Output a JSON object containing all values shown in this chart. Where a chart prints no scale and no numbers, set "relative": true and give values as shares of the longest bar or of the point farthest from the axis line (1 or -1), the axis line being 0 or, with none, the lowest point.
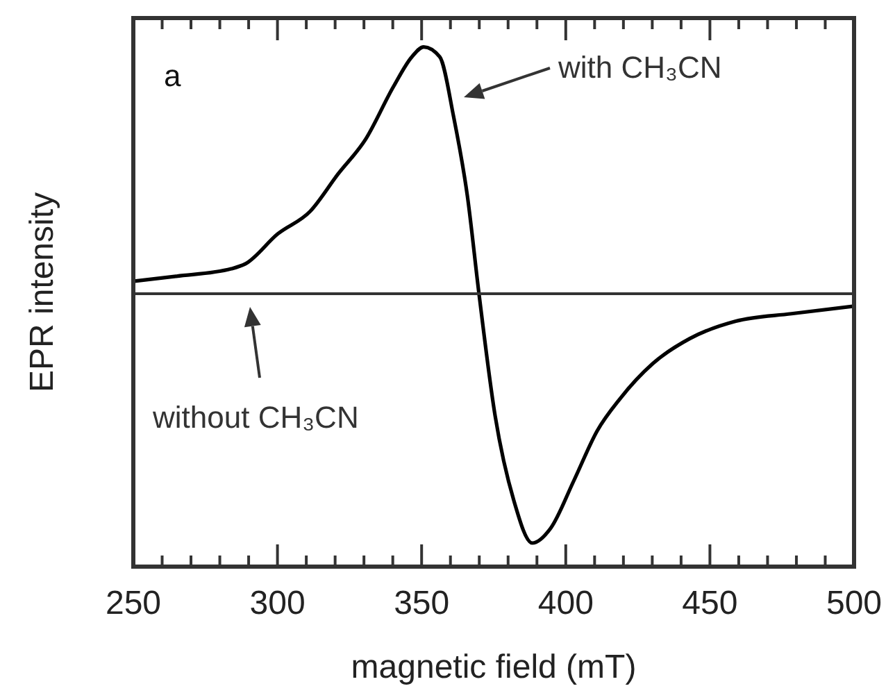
{
  "chart_data": {
    "type": "line",
    "relative": true,
    "xlabel": "magnetic field (mT)",
    "ylabel": "EPR intensity",
    "xlim": [
      250,
      500
    ],
    "xticks": [
      250,
      {
        "value": 260,
        "label": null
      },
      {
        "value": 270,
        "label": null
      },
      {
        "value": 280,
        "label": null
      },
      {
        "value": 290,
        "label": null
      },
      300,
      {
        "value": 310,
        "label": null
      },
      {
        "value": 320,
        "label": null
      },
      {
        "value": 330,
        "label": null
      },
      {
        "value": 340,
        "label": null
      },
      350,
      {
        "value": 360,
        "label": null
      },
      {
        "value": 370,
        "label": null
      },
      {
        "value": 380,
        "label": null
      },
      {
        "value": 390,
        "label": null
      },
      400,
      {
        "value": 410,
        "label": null
      },
      {
        "value": 420,
        "label": null
      },
      {
        "value": 430,
        "label": null
      },
      {
        "value": 440,
        "label": null
      },
      450,
      {
        "value": 460,
        "label": null
      },
      {
        "value": 470,
        "label": null
      },
      {
        "value": 480,
        "label": null
      },
      {
        "value": 490,
        "label": null
      },
      500
    ],
    "tick_labels": "x",
    "grid": false,
    "marker": "none",
    "line_style": "solid",
    "series": [
      {
        "color": "#000000",
        "x": [
          250,
          264.8,
          284,
          288.9,
          300.1,
          311.3,
          321,
          330.6,
          340.2,
          346.6,
          350.7,
          356.3,
          361.1,
          365.9,
          369.9,
          375.5,
          382,
          388.4,
          394.8,
          402.8,
          410.9,
          418.9,
          430.2,
          443,
          459,
          478.3,
          500
        ],
        "values": [
          0.05,
          0.07,
          0.1,
          0.12,
          0.24,
          0.33,
          0.48,
          0.62,
          0.83,
          0.95,
          0.99,
          0.95,
          0.71,
          0.39,
          0,
          -0.49,
          -0.83,
          -1,
          -0.94,
          -0.75,
          -0.55,
          -0.42,
          -0.28,
          -0.18,
          -0.11,
          -0.08,
          -0.05
        ]
      },
      {
        "color": "#333333",
        "x": [
          250,
          500
        ],
        "values": [
          0,
          0
        ]
      }
    ],
    "annotations": [
      "a",
      "with CH₃CN",
      "without CH₃CN"
    ]
  }
}
